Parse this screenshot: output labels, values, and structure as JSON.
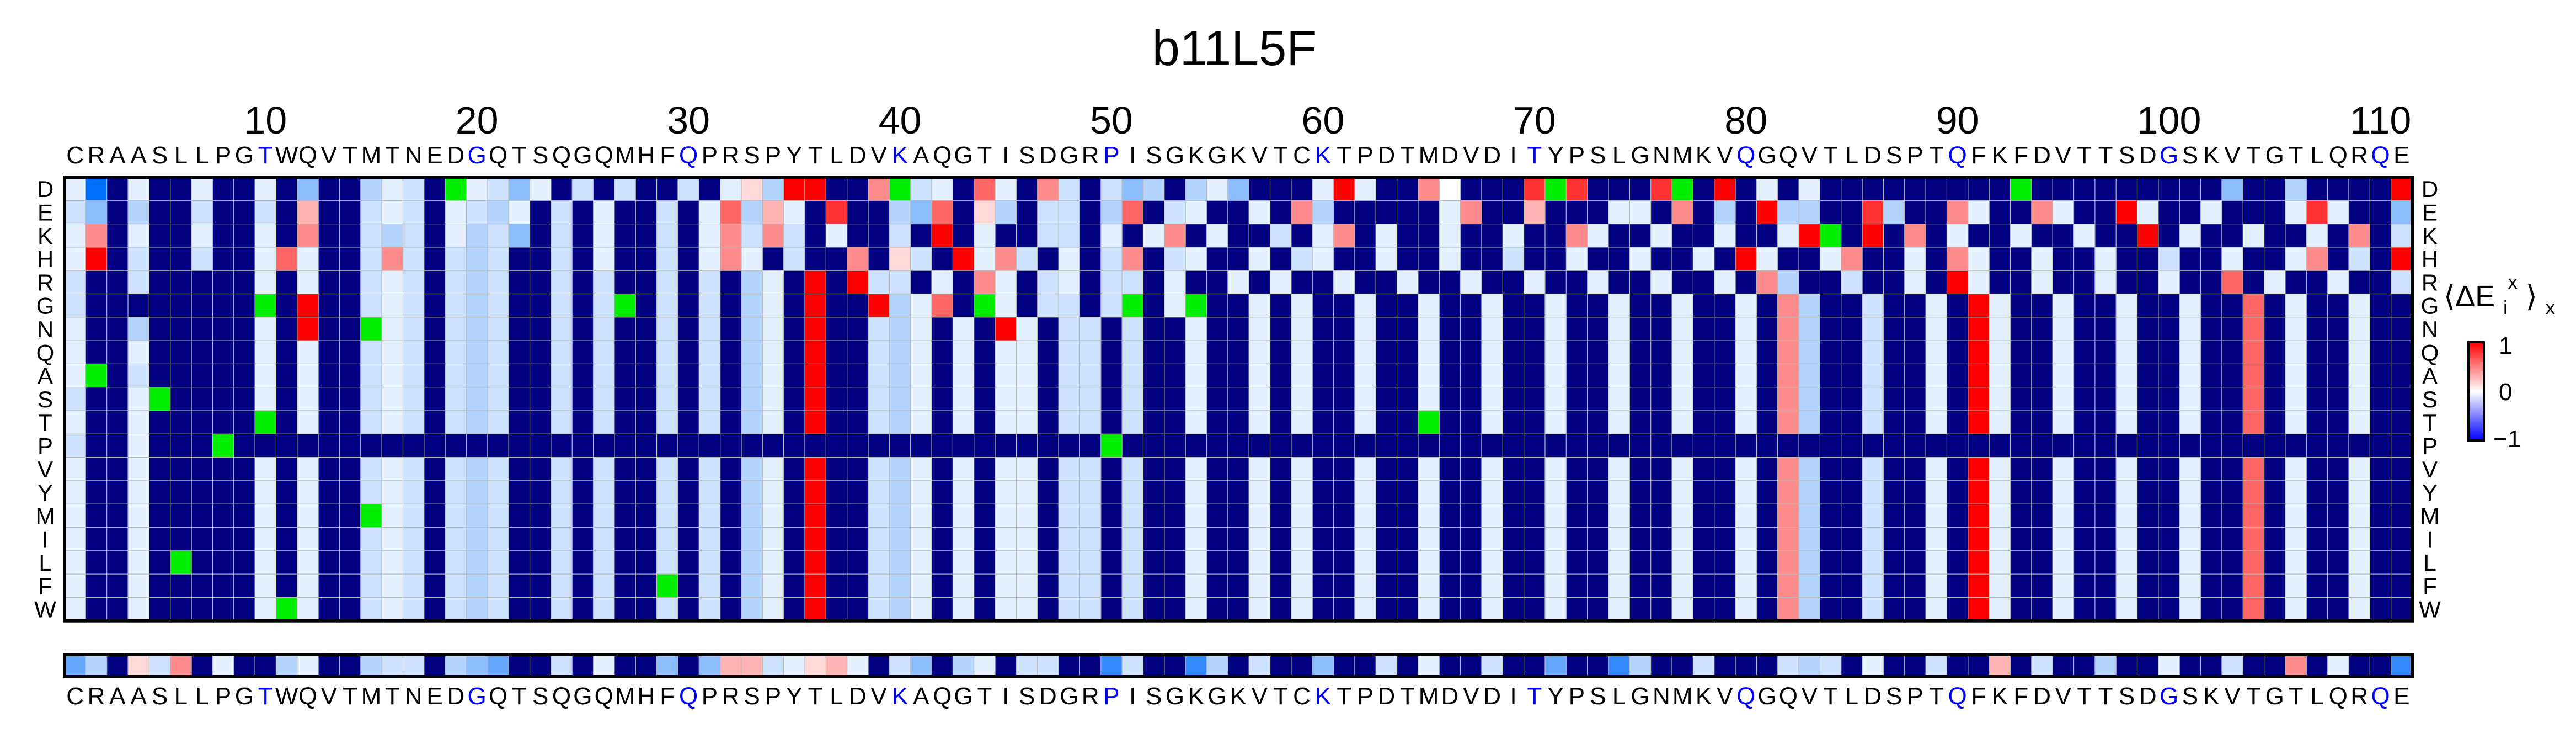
{
  "chart_data": {
    "type": "heatmap",
    "title": "b11L5F",
    "sequence": "CRAASLLPGTWQVTMTNEDGQTSQGQMHFQPRSPYTLDVKAQGTISDGRPISGKGKVTCKTPDTMDVDITYPSLGNMKVQGQVTLDSPTQFKFDVTTSDGSKVTGTLQRQE",
    "highlight_positions": [
      10,
      20,
      30,
      40,
      50,
      60,
      70,
      80,
      90,
      100,
      110
    ],
    "highlight_color": "#0000ff",
    "x_ticks": [
      10,
      20,
      30,
      40,
      50,
      60,
      70,
      80,
      90,
      100,
      110
    ],
    "amino_acids": [
      "D",
      "E",
      "K",
      "H",
      "R",
      "G",
      "N",
      "Q",
      "A",
      "S",
      "T",
      "P",
      "V",
      "Y",
      "M",
      "I",
      "L",
      "F",
      "W"
    ],
    "colorbar": {
      "label": "⟨ΔE",
      "label_sub": "i",
      "label_sup": "x",
      "label_tail": "⟩",
      "label_outer_sub": "x",
      "ticks": [
        "1",
        "0",
        "−1"
      ],
      "vmin": -1,
      "vmax": 1
    },
    "colors": {
      "wildtype": "#00ee00",
      "excluded": "#000080",
      "positive": "#ff0000",
      "negative": "#0000ff",
      "neutral": "#ffffff"
    },
    "notes_mode": "cells hold one row string per amino acid; each character is a level code in the 'key' map",
    "key": {
      "W": "wildtype",
      "N": "excluded",
      "9": 1.0,
      "8": 0.8,
      "7": 0.6,
      "6": 0.45,
      "5": 0.3,
      "4": 0.15,
      "0": 0.0,
      "a": -0.1,
      "b": -0.2,
      "c": -0.3,
      "d": -0.45,
      "e": -0.6,
      "f": -0.8,
      "g": -1.0
    },
    "matrix_rows": {
      "D": "agNaNNaNNaNdNNcabNWabdaNbNbNNbNa4c99NN6WbaN7aN6bNbdcNcadNNNa9aNN6ANNN8W8NNN8WN9NaNaNNNNNNNNNWNNNNNNNNNdNNcNNNN9",
      "E": "bdNcNNbNNbN5NNbabNabcaNbNaNNbNa7c5aN8NNcd7N4cNbbNc7NbaNNaN6cNNNNNa6NN5NNNaaN6NcN9ccNN8cNN6aNN6aNN9aNNaNNNa8aNNdN",
      "K": "a6NaNNaNNaN6NNbcbNacbdNbNaNNbNa6b6bNaNNbN9NaNNbbNaNa6NaNNbNa6NaNNaNNaNN6aNNaNNaNNa9WN9N6NaNNaNNaNN9NaNNaNNaN6NbNNN",
      "H": "a9NbNNbNNa7aNNb6bNbcbNNbNaNNbNa6aNbNN6N4bN9a6bNaNb6NbaNNaNbaNNaNNaNNbNNaNNaNNaN9aNNa6NNaN6aNNaNNaNNbNNaNNa6NbN9aN",
      "R": "bNNbNNNNNaNaNNbabNbcbNNbNbNNbNbNcaN9N9bbNaN6aNbaNbbNaNNaNaNNaNNaNNaNNaNNaNNaNNaN6cNNbNNaN9aNNaNNaNNaNN7NaNNaNNbN6",
      "G": "bNNNNNNNNWN9NNbabNbcbNNbNbWNbNbNcaN9NN9ca7NWaNbbNbWNaWNNaNaNNaNNaNNaNNaNNaNNaNNaN6cNNbNNaN9aNNaNNaNNaNN7NaNNaNNbN6",
      "N": "aNNcNNNNNaN9NNWabNbcbNNbNbNNbNbNcaN9NNbcaNaN9aNbbNbNNaNNaNaNNaNNaNNaNNaNNaNNaNNaN6cNNbNNaN9aNNaNNaNNaNN7NaNNaNNbN6",
      "Q": "aNNaNNNNNaNaNNbabNbcbNNbNbNNbNbNcaN9NNbcaNaNaaNbbNbNNaNNaNaNNaNNaNNaNNaNNaNNaNNaN6cNNbNNaN9aNNaNNaNNaNN7NaNNaNNbN6",
      "A": "aWNbNNNNNaNaNNbabNbcbNNbNbNNbNbNcaN9NNbcaNaNaaNbbNbNNaNNaNaNNaNNaNNaNNaNNaNNaNNaN6cNNbNNaN9aNNaNNaNNaNN7NaNNaNNbN6",
      "S": "bNNaWNNNNaNaNNbabNbcbNNbNbNNbNbNcaN9NNbcaNaNaaNbbNbNNaNNaNaNNaNNaNNaNNaNNaNNaNNaN6cNNbNNaN9aNNaNNaNNaNN7NaNNaNNbN6",
      "T": "aNNaNNNNNWNaNNbabNbcbNNbNbNNbNbNcaN9NNbcaNaNaaNbbNbNNaNNaNaNNaNNWNNaNNaNNaNNaNNaN6cNNbNNaN9aNNaNNaNNaNN7NaNNaNNbN6",
      "P": "bNNaNNNWNNNNNNNNNNNNNNNNNNNNNNNNNNNNNNNNNNNNNNNNNWNNNNNNNNNNNNNNNNNNNNNNNNNNNNNNNNNNNNNNNNNNNNNNNNNNNNNNNNNNNNNN",
      "V": "aNNaNNNNNaNaNNbabNbcbNNbNbNNbNbNcaN9NNbcaNaNaaNbbNbNNaNNaNaNNaNNaNNaNNaNNaNNaNNaN6cNNbNNaN9aNNaNNaNNaNN7NaNNaNNbN6",
      "Y": "aNNaNNNNNaNaNNbabNbcbNNbNbNNbNbNcaN9NNbcaNaNaaNbbNbNNaNNaNaNNaNNaNNaNNaNNaNNaNNaN6cNNbNNaN9aNNaNNaNNaNN7NaNNaNNbN6",
      "M": "aNNaNNNNNaNaNNWabNbcbNNbNbNNbNbNcaN9NNbcaNaNaaNbbNbNNaNNaNaNNaNNaNNaNNaNNaNNaNNaN6cNNbNNaN9aNNaNNaNNaNN7NaNNaNNbN6",
      "I": "aNNaNNNNNaNaNNbabNbcbNNbNbNNbNbNcaN9NNbcaNaNaaNbbNbNNaNNaNaNNaNNaNNaNNaNNaNNaNNaN6cNNbNNaN9aNNaNNaNNaNN7NaNNaNNbN6",
      "L": "aNNaNWNNNaNaNNbabNbcbNNbNbNNbNbNcaN9NNbcaNaNaaNbbNbNNaNNaNaNNaNNaNNaNNaNNaNNaNNaN6cNNbNNaN9aNNaNNaNNaNN7NaNNaNNbN6",
      "F": "aNNaNNNNNaNaNNbabNbcbNNbNbNNWNbNcaN9NNbcaNaNaaNbbNbNNaNNaNaNNaNNaNNaNNaNNaNNaNNaN6cNNbNNaN9aNNaNNaNNaNN7NaNNaNNbN6",
      "W": "aNNaNNNNNaWaNNbabNbcbNNbNbNNbNbNcaN9NNbcaNaNaaNbbNbNNaNNaNaNNaNNaNNaNNaNNaNNaNNaN6cNNbNNaN9aNNaNNaNNaNN7NaNNaNNbN6"
    },
    "summary_row": "ecN4b6NaNNcaNNcbbNcdeNNbNaNNdNd55ba45aNbdNcaNbbNNfbNNfcNbNNdNNbNaNNbNNeNNfcNNbNNNbcbNaNNbNN5NbNNcNNaNNbNN6NaNNfN"
  }
}
